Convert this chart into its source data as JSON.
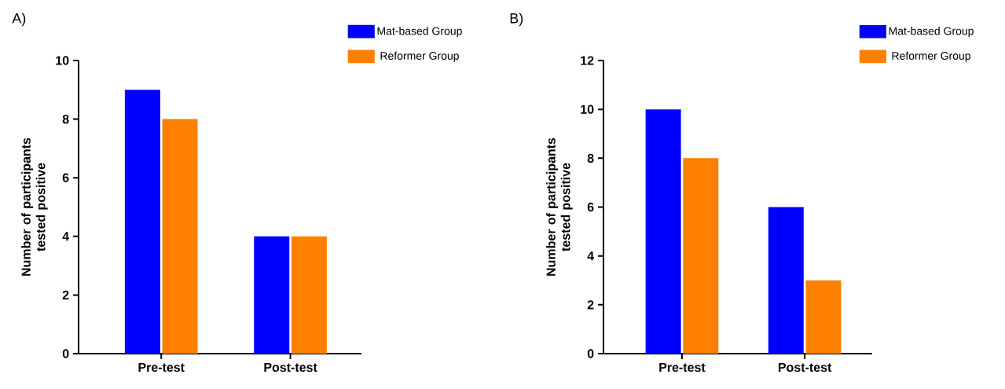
{
  "chart_data": [
    {
      "type": "bar",
      "title": "A)",
      "categories": [
        "Pre-test",
        "Post-test"
      ],
      "ylabel": "Number of participants tested positive",
      "ylim": [
        0,
        10
      ],
      "yticks": [
        0,
        2,
        4,
        6,
        8,
        10
      ],
      "legend": "top right",
      "series": [
        {
          "name": "Mat-based Group",
          "color": "#0000ff",
          "values": [
            9,
            4
          ]
        },
        {
          "name": "Reformer Group",
          "color": "#ff8000",
          "values": [
            8,
            4
          ]
        }
      ]
    },
    {
      "type": "bar",
      "title": "B)",
      "categories": [
        "Pre-test",
        "Post-test"
      ],
      "ylabel": "Number of participants tested positive",
      "ylim": [
        0,
        12
      ],
      "yticks": [
        0,
        2,
        4,
        6,
        8,
        10,
        12
      ],
      "legend": "top right",
      "series": [
        {
          "name": "Mat-based Group",
          "color": "#0000ff",
          "values": [
            10,
            6
          ]
        },
        {
          "name": "Reformer Group",
          "color": "#ff8000",
          "values": [
            8,
            3
          ]
        }
      ]
    }
  ]
}
